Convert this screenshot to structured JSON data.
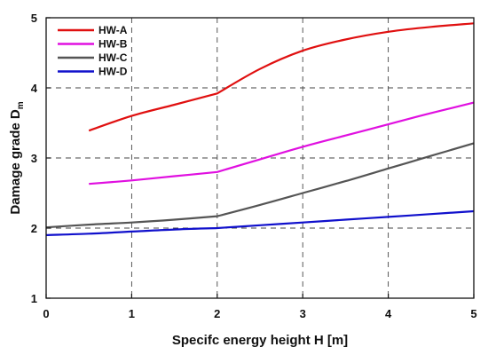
{
  "chart_data": {
    "type": "line",
    "title": "",
    "xlabel": "Specifc energy height H [m]",
    "ylabel_main": "Damage grade D",
    "ylabel_sub": "m",
    "xlim": [
      0,
      5
    ],
    "ylim": [
      1,
      5
    ],
    "xticks": [
      0,
      1,
      2,
      3,
      4,
      5
    ],
    "yticks": [
      1,
      2,
      3,
      4,
      5
    ],
    "grid": "dashed",
    "legend_position": "top-left",
    "series": [
      {
        "name": "HW-A",
        "color": "#e01010",
        "x": [
          0.5,
          1.0,
          1.5,
          2.0,
          2.5,
          3.0,
          3.5,
          4.0,
          4.5,
          5.0
        ],
        "y": [
          3.39,
          3.6,
          3.76,
          3.92,
          4.27,
          4.53,
          4.69,
          4.8,
          4.87,
          4.92
        ]
      },
      {
        "name": "HW-B",
        "color": "#e010e0",
        "x": [
          0.5,
          1.0,
          1.5,
          2.0,
          2.5,
          3.0,
          3.5,
          4.0,
          4.5,
          5.0
        ],
        "y": [
          2.63,
          2.68,
          2.74,
          2.8,
          2.98,
          3.16,
          3.32,
          3.48,
          3.64,
          3.79
        ]
      },
      {
        "name": "HW-C",
        "color": "#555555",
        "x": [
          0.0,
          0.5,
          1.0,
          1.5,
          2.0,
          2.5,
          3.0,
          3.5,
          4.0,
          4.5,
          5.0
        ],
        "y": [
          2.01,
          2.05,
          2.08,
          2.12,
          2.17,
          2.33,
          2.5,
          2.67,
          2.85,
          3.03,
          3.21
        ]
      },
      {
        "name": "HW-D",
        "color": "#1010cc",
        "x": [
          0.0,
          0.5,
          1.0,
          1.5,
          2.0,
          2.5,
          3.0,
          3.5,
          4.0,
          4.5,
          5.0
        ],
        "y": [
          1.9,
          1.92,
          1.95,
          1.98,
          2.0,
          2.04,
          2.08,
          2.12,
          2.16,
          2.2,
          2.24
        ]
      }
    ]
  }
}
